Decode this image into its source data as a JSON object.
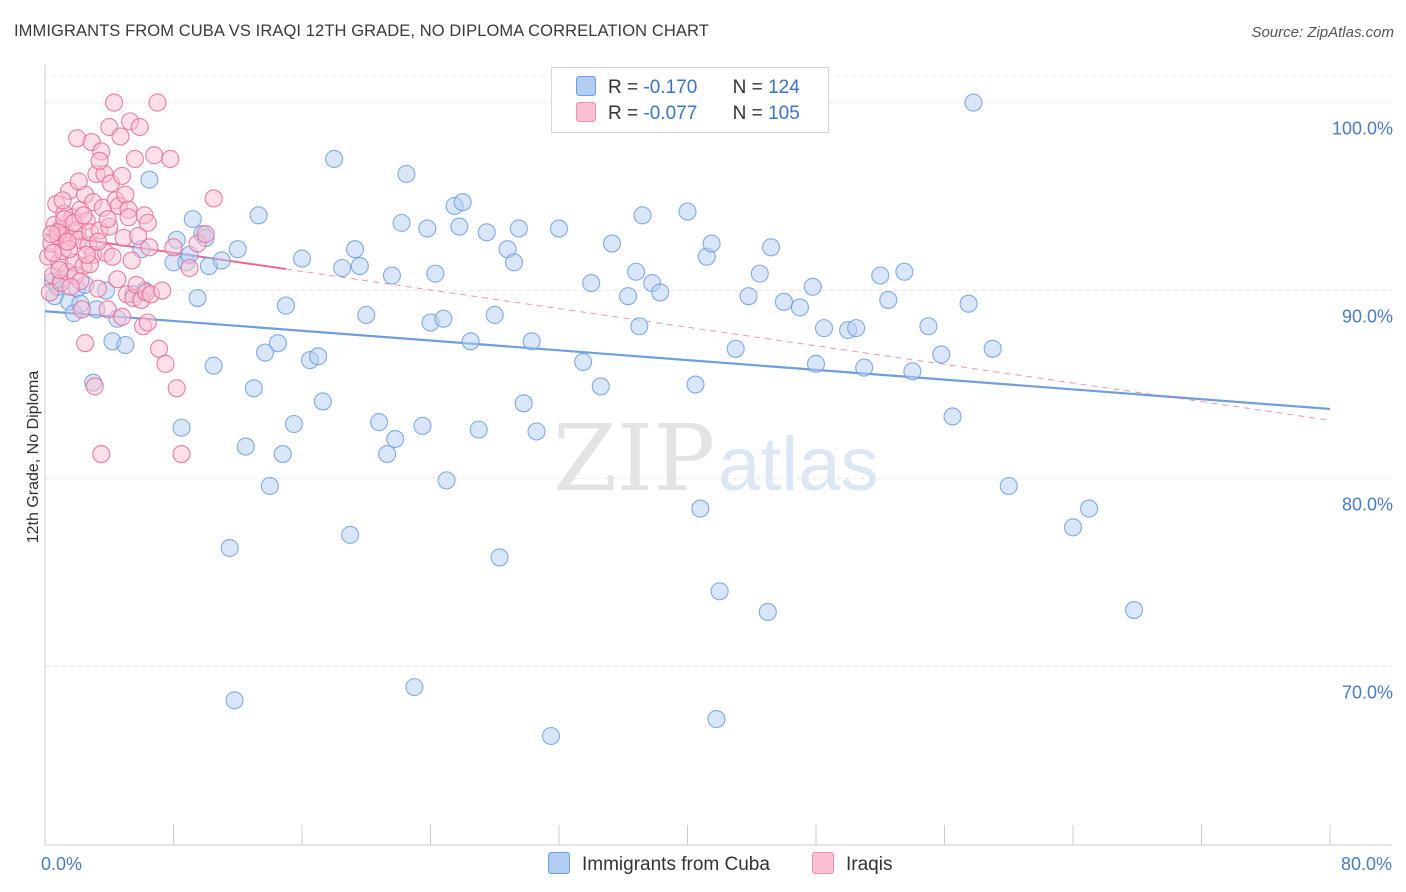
{
  "title": "IMMIGRANTS FROM CUBA VS IRAQI 12TH GRADE, NO DIPLOMA CORRELATION CHART",
  "source": "Source: ZipAtlas.com",
  "watermark": {
    "zip": "ZIP",
    "atlas": "atlas"
  },
  "legend": {
    "rows": [
      {
        "r_label": "R =",
        "r_value": "-0.170",
        "n_label": "N =",
        "n_value": "124",
        "fill": "#b3cdf2",
        "stroke": "#6e9ee0"
      },
      {
        "r_label": "R =",
        "r_value": "-0.077",
        "n_label": "N =",
        "n_value": "105",
        "fill": "#f9c0d2",
        "stroke": "#ee8fae"
      }
    ]
  },
  "bottom_legend": [
    {
      "label": "Immigrants from Cuba",
      "fill": "#b3cdf2",
      "stroke": "#6e9ee0"
    },
    {
      "label": "Iraqis",
      "fill": "#f9c0d2",
      "stroke": "#ee8fae"
    }
  ],
  "chart_data": {
    "type": "scatter",
    "ylabel": "12th Grade, No Diploma",
    "xlabel": "",
    "xlim": [
      0,
      80
    ],
    "ylim": [
      60.5,
      102
    ],
    "x_tick_labels": [
      {
        "value": 0,
        "label": "0.0%"
      },
      {
        "value": 80,
        "label": "80.0%"
      }
    ],
    "y_tick_labels": [
      {
        "value": 100,
        "label": "100.0%"
      },
      {
        "value": 90,
        "label": "90.0%"
      },
      {
        "value": 80,
        "label": "80.0%"
      },
      {
        "value": 70,
        "label": "70.0%"
      }
    ],
    "x_minor_ticks": [
      0,
      8,
      16,
      24,
      32,
      40,
      48,
      56,
      64,
      72,
      80
    ],
    "grid": true,
    "series": [
      {
        "name": "Immigrants from Cuba",
        "color": "#6e9ee0",
        "fill": "#b3cdf2",
        "trend": {
          "x": [
            0,
            80
          ],
          "y": [
            88.9,
            83.7
          ],
          "solid_to": 80
        },
        "points": [
          [
            0.5,
            90.5
          ],
          [
            0.6,
            89.7
          ],
          [
            0.8,
            90.2
          ],
          [
            1.0,
            90.6
          ],
          [
            1.5,
            89.4
          ],
          [
            1.8,
            88.8
          ],
          [
            2.0,
            90.1
          ],
          [
            2.2,
            89.3
          ],
          [
            2.5,
            90.3
          ],
          [
            3.0,
            85.1
          ],
          [
            3.2,
            89.0
          ],
          [
            3.8,
            90.0
          ],
          [
            4.2,
            87.3
          ],
          [
            4.5,
            88.5
          ],
          [
            5.0,
            87.1
          ],
          [
            5.5,
            89.8
          ],
          [
            6.0,
            92.2
          ],
          [
            6.2,
            90.0
          ],
          [
            6.5,
            95.9
          ],
          [
            8.0,
            91.5
          ],
          [
            8.2,
            92.7
          ],
          [
            8.5,
            82.7
          ],
          [
            8.8,
            91.5
          ],
          [
            9.0,
            91.9
          ],
          [
            9.2,
            93.8
          ],
          [
            9.5,
            89.6
          ],
          [
            9.8,
            93.0
          ],
          [
            10.0,
            92.8
          ],
          [
            10.2,
            91.3
          ],
          [
            10.5,
            86.0
          ],
          [
            11.0,
            91.6
          ],
          [
            11.5,
            76.3
          ],
          [
            11.8,
            68.2
          ],
          [
            12.0,
            92.2
          ],
          [
            12.5,
            81.7
          ],
          [
            13.0,
            84.8
          ],
          [
            13.3,
            94.0
          ],
          [
            13.7,
            86.7
          ],
          [
            14.0,
            79.6
          ],
          [
            14.5,
            87.2
          ],
          [
            14.8,
            81.3
          ],
          [
            15.0,
            89.2
          ],
          [
            15.5,
            82.9
          ],
          [
            16.0,
            91.7
          ],
          [
            16.5,
            86.3
          ],
          [
            17.0,
            86.5
          ],
          [
            17.3,
            84.1
          ],
          [
            18.0,
            97.0
          ],
          [
            18.5,
            91.2
          ],
          [
            19.0,
            77.0
          ],
          [
            19.3,
            92.2
          ],
          [
            19.6,
            91.3
          ],
          [
            20.0,
            88.7
          ],
          [
            20.8,
            83.0
          ],
          [
            21.3,
            81.3
          ],
          [
            21.6,
            90.8
          ],
          [
            21.8,
            82.1
          ],
          [
            22.5,
            96.2
          ],
          [
            23.0,
            68.9
          ],
          [
            23.5,
            82.8
          ],
          [
            23.8,
            93.3
          ],
          [
            24.0,
            88.3
          ],
          [
            24.3,
            90.9
          ],
          [
            24.8,
            88.5
          ],
          [
            25.0,
            79.9
          ],
          [
            25.5,
            94.5
          ],
          [
            25.8,
            93.4
          ],
          [
            26.0,
            94.7
          ],
          [
            26.5,
            87.3
          ],
          [
            27.0,
            82.6
          ],
          [
            27.5,
            93.1
          ],
          [
            28.0,
            88.7
          ],
          [
            28.3,
            75.8
          ],
          [
            28.8,
            92.2
          ],
          [
            29.2,
            91.5
          ],
          [
            29.5,
            93.3
          ],
          [
            29.8,
            84.0
          ],
          [
            30.3,
            87.3
          ],
          [
            30.6,
            82.5
          ],
          [
            31.5,
            66.3
          ],
          [
            32.0,
            93.3
          ],
          [
            33.5,
            86.2
          ],
          [
            34.0,
            90.4
          ],
          [
            34.6,
            84.9
          ],
          [
            35.3,
            92.5
          ],
          [
            36.3,
            89.7
          ],
          [
            36.8,
            91.0
          ],
          [
            37.0,
            88.1
          ],
          [
            37.2,
            94.0
          ],
          [
            37.8,
            90.4
          ],
          [
            38.3,
            89.9
          ],
          [
            40.0,
            94.2
          ],
          [
            40.5,
            85.0
          ],
          [
            40.8,
            78.4
          ],
          [
            41.2,
            91.8
          ],
          [
            41.5,
            92.5
          ],
          [
            41.8,
            67.2
          ],
          [
            42.0,
            74.0
          ],
          [
            43.0,
            86.9
          ],
          [
            43.8,
            89.7
          ],
          [
            44.5,
            90.9
          ],
          [
            45.0,
            72.9
          ],
          [
            45.2,
            92.3
          ],
          [
            46.0,
            89.4
          ],
          [
            47.0,
            89.1
          ],
          [
            47.8,
            90.2
          ],
          [
            48.0,
            86.1
          ],
          [
            48.5,
            88.0
          ],
          [
            50.0,
            87.9
          ],
          [
            50.5,
            88.0
          ],
          [
            51.0,
            85.9
          ],
          [
            52.0,
            90.8
          ],
          [
            52.5,
            89.5
          ],
          [
            53.5,
            91.0
          ],
          [
            54.0,
            85.7
          ],
          [
            55.0,
            88.1
          ],
          [
            55.8,
            86.6
          ],
          [
            56.5,
            83.3
          ],
          [
            57.5,
            89.3
          ],
          [
            57.8,
            100.0
          ],
          [
            59.0,
            86.9
          ],
          [
            60.0,
            79.6
          ],
          [
            64.0,
            77.4
          ],
          [
            65.0,
            78.4
          ],
          [
            67.8,
            73.0
          ],
          [
            22.2,
            93.6
          ]
        ]
      },
      {
        "name": "Iraqis",
        "color": "#e86a94",
        "fill": "#f9c0d2",
        "trend": {
          "x": [
            0,
            80
          ],
          "y": [
            93.0,
            83.1
          ],
          "solid_to": 15
        },
        "points": [
          [
            0.2,
            91.8
          ],
          [
            0.3,
            89.9
          ],
          [
            0.4,
            92.5
          ],
          [
            0.5,
            90.8
          ],
          [
            0.6,
            93.5
          ],
          [
            0.7,
            94.6
          ],
          [
            0.8,
            92.9
          ],
          [
            0.9,
            91.5
          ],
          [
            1.0,
            93.3
          ],
          [
            1.0,
            90.4
          ],
          [
            1.1,
            92.1
          ],
          [
            1.2,
            94.1
          ],
          [
            1.3,
            93.0
          ],
          [
            1.4,
            91.0
          ],
          [
            1.5,
            95.3
          ],
          [
            1.6,
            92.8
          ],
          [
            1.7,
            93.9
          ],
          [
            1.8,
            91.5
          ],
          [
            1.9,
            90.8
          ],
          [
            2.0,
            98.1
          ],
          [
            2.0,
            93.2
          ],
          [
            2.1,
            92.7
          ],
          [
            2.2,
            94.3
          ],
          [
            2.3,
            89.0
          ],
          [
            2.4,
            91.3
          ],
          [
            2.5,
            95.1
          ],
          [
            2.5,
            87.2
          ],
          [
            2.6,
            93.7
          ],
          [
            2.7,
            92.4
          ],
          [
            2.8,
            93.1
          ],
          [
            2.9,
            97.9
          ],
          [
            3.0,
            94.7
          ],
          [
            3.0,
            91.9
          ],
          [
            3.1,
            84.9
          ],
          [
            3.2,
            96.2
          ],
          [
            3.3,
            90.1
          ],
          [
            3.4,
            93.2
          ],
          [
            3.5,
            97.4
          ],
          [
            3.5,
            81.3
          ],
          [
            3.6,
            94.4
          ],
          [
            3.7,
            96.2
          ],
          [
            3.8,
            92.0
          ],
          [
            3.9,
            89.0
          ],
          [
            4.0,
            98.7
          ],
          [
            4.0,
            93.4
          ],
          [
            4.1,
            95.7
          ],
          [
            4.2,
            91.8
          ],
          [
            4.3,
            100.0
          ],
          [
            4.4,
            94.8
          ],
          [
            4.5,
            90.6
          ],
          [
            4.6,
            94.5
          ],
          [
            4.7,
            98.2
          ],
          [
            4.8,
            96.1
          ],
          [
            4.9,
            92.8
          ],
          [
            5.0,
            95.1
          ],
          [
            5.1,
            89.8
          ],
          [
            5.2,
            94.3
          ],
          [
            5.3,
            99.0
          ],
          [
            5.4,
            91.6
          ],
          [
            5.5,
            89.6
          ],
          [
            5.6,
            97.0
          ],
          [
            5.7,
            90.3
          ],
          [
            5.8,
            92.9
          ],
          [
            5.9,
            98.7
          ],
          [
            6.0,
            89.5
          ],
          [
            6.1,
            88.1
          ],
          [
            6.2,
            94.0
          ],
          [
            6.3,
            89.9
          ],
          [
            6.4,
            93.6
          ],
          [
            6.5,
            92.3
          ],
          [
            6.6,
            89.8
          ],
          [
            6.8,
            97.2
          ],
          [
            7.0,
            100.0
          ],
          [
            7.1,
            86.9
          ],
          [
            7.3,
            90.0
          ],
          [
            7.5,
            86.1
          ],
          [
            7.8,
            97.0
          ],
          [
            8.0,
            92.3
          ],
          [
            8.2,
            84.8
          ],
          [
            8.5,
            81.3
          ],
          [
            9.0,
            91.2
          ],
          [
            9.5,
            92.5
          ],
          [
            10.0,
            93.0
          ],
          [
            10.5,
            94.9
          ],
          [
            1.2,
            93.8
          ],
          [
            1.5,
            92.2
          ],
          [
            2.2,
            90.5
          ],
          [
            2.8,
            91.4
          ],
          [
            3.3,
            92.6
          ],
          [
            0.8,
            93.1
          ],
          [
            1.8,
            93.6
          ],
          [
            2.4,
            94.0
          ],
          [
            0.5,
            92.0
          ],
          [
            1.1,
            94.8
          ],
          [
            0.9,
            91.1
          ],
          [
            1.6,
            90.2
          ],
          [
            2.1,
            95.8
          ],
          [
            3.4,
            96.9
          ],
          [
            4.8,
            88.6
          ],
          [
            5.2,
            93.9
          ],
          [
            6.4,
            88.3
          ],
          [
            0.4,
            93.0
          ],
          [
            1.4,
            92.6
          ],
          [
            2.6,
            91.9
          ],
          [
            3.9,
            93.8
          ]
        ]
      }
    ]
  }
}
